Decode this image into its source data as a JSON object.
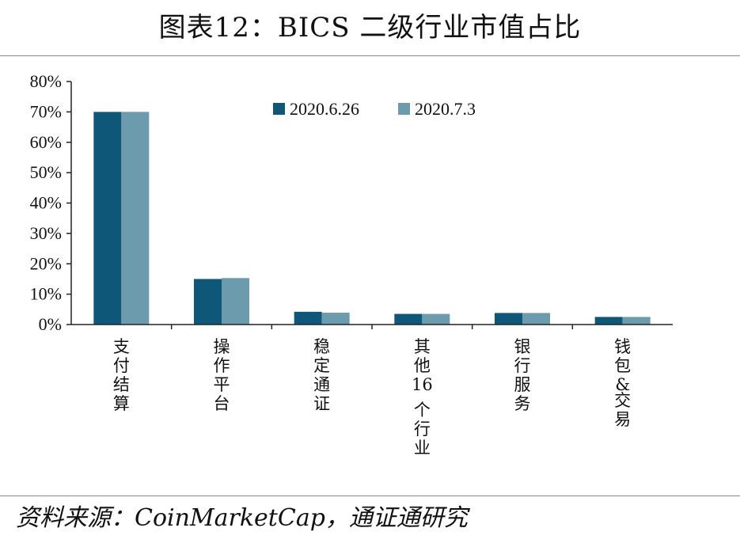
{
  "title": "图表12：BICS 二级行业市值占比",
  "source": "资料来源：CoinMarketCap，通证通研究",
  "chart_data": {
    "type": "bar",
    "categories": [
      "支付结算",
      "操作平台",
      "稳定通证",
      "其他16个行业",
      "银行服务",
      "钱包&交易"
    ],
    "series": [
      {
        "name": "2020.6.26",
        "color": "#0e5778",
        "values": [
          70.0,
          15.0,
          4.2,
          3.5,
          3.8,
          2.5
        ]
      },
      {
        "name": "2020.7.3",
        "color": "#6b9bac",
        "values": [
          70.0,
          15.3,
          3.9,
          3.5,
          3.8,
          2.5
        ]
      }
    ],
    "ylim": [
      0,
      80
    ],
    "yticks": [
      0,
      10,
      20,
      30,
      40,
      50,
      60,
      70,
      80
    ],
    "ytick_suffix": "%",
    "legend_position": "top-center",
    "grid": false
  }
}
